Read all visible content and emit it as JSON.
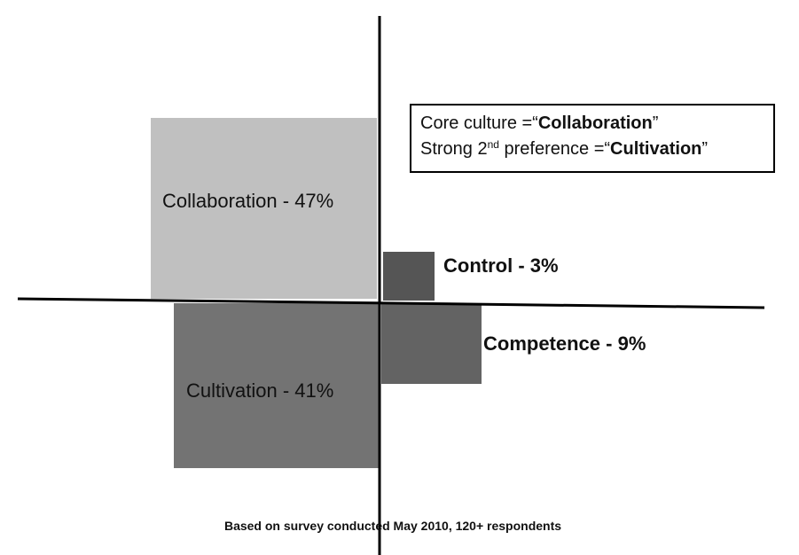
{
  "quadrants": [
    {
      "label": "Collaboration - 47%"
    },
    {
      "label": "Control - 3%"
    },
    {
      "label": "Competence - 9%"
    },
    {
      "label": "Cultivation - 41%"
    }
  ],
  "callout": {
    "lines": [
      [
        "Core culture =“",
        "Collaboration",
        "”"
      ],
      [
        "Strong 2",
        "nd",
        " preference =“",
        "Cultivation",
        "”"
      ]
    ]
  },
  "footnote": "Based on survey conducted May 2010, 120+ respondents"
}
